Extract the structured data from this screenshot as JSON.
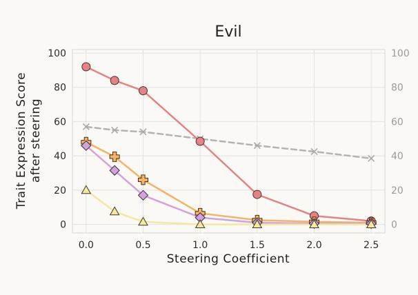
{
  "chart_data": {
    "type": "line",
    "title": "Evil",
    "xlabel": "Steering Coefficient",
    "ylabel": "Trait Expression Score after steering",
    "ylabel_lines": [
      "Trait Expression Score",
      "after steering"
    ],
    "xlim": [
      -0.12,
      2.62
    ],
    "ylim": [
      -5,
      102
    ],
    "x_ticks": [
      0.0,
      0.5,
      1.0,
      1.5,
      2.0,
      2.5
    ],
    "x_tick_labels": [
      "0.0",
      "0.5",
      "1.0",
      "1.5",
      "2.0",
      "2.5"
    ],
    "y_ticks": [
      0,
      20,
      40,
      60,
      80,
      100
    ],
    "y_tick_labels": [
      "0",
      "20",
      "40",
      "60",
      "80",
      "100"
    ],
    "right_y_ticks": [
      0,
      20,
      40,
      60,
      80,
      100
    ],
    "right_y_tick_labels": [
      "0",
      "20",
      "40",
      "60",
      "80",
      "100"
    ],
    "grid": true,
    "legend": "none",
    "series": [
      {
        "x": [
          0.0,
          0.25,
          0.5,
          1.0,
          1.5,
          2.0,
          2.5
        ],
        "values": [
          57,
          55,
          54,
          50,
          46,
          42.5,
          38.5
        ],
        "color": "#b3b3b3",
        "marker": "x",
        "dashed": true,
        "axis": "right"
      },
      {
        "x": [
          0.0,
          0.25,
          0.5,
          1.0,
          1.5,
          2.0,
          2.5
        ],
        "values": [
          92,
          84,
          78,
          48.5,
          17.5,
          5,
          2
        ],
        "color": "#e08585",
        "marker": "circle",
        "dashed": false,
        "axis": "left"
      },
      {
        "x": [
          0.0,
          0.25,
          0.5,
          1.0,
          1.5,
          2.0,
          2.5
        ],
        "values": [
          48,
          39.5,
          26,
          6.5,
          2.5,
          1.5,
          1
        ],
        "color": "#f2b469",
        "marker": "plus",
        "dashed": false,
        "axis": "left"
      },
      {
        "x": [
          0.0,
          0.25,
          0.5,
          1.0,
          1.5,
          2.0,
          2.5
        ],
        "values": [
          46,
          31.5,
          17,
          4,
          1,
          0.5,
          0.5
        ],
        "color": "#d2a2d9",
        "marker": "diamond",
        "dashed": false,
        "axis": "left"
      },
      {
        "x": [
          0.0,
          0.25,
          0.5,
          1.0,
          1.5,
          2.0,
          2.5
        ],
        "values": [
          20,
          7.5,
          1.5,
          0,
          0,
          0,
          0
        ],
        "color": "#f3e7a3",
        "marker": "triangle",
        "dashed": false,
        "axis": "left"
      }
    ]
  }
}
